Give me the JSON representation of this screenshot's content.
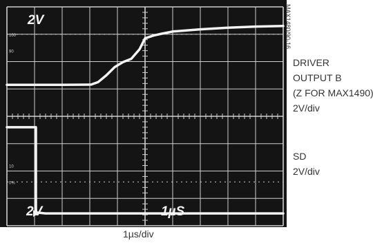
{
  "figure_id": "MAX1480/90-16",
  "scope": {
    "screen_color": "#141414",
    "grid_color": "#d0d0d0",
    "trace_color": "#f4f4f4",
    "ch1_scale_text": "2V",
    "ch2_scale_text": "2V",
    "timebase_text": "1µS",
    "ref_markers": [
      "100",
      "90",
      "10",
      "0%"
    ]
  },
  "channel_labels": {
    "ch1": [
      "DRIVER",
      "OUTPUT B",
      "(Z FOR MAX1490)",
      "2V/div"
    ],
    "ch2": [
      "SD",
      "2V/div"
    ]
  },
  "timebase_label": "1µs/div",
  "chart_data": {
    "type": "line",
    "xlabel": "1µs/div",
    "ylabel": "",
    "xlim": [
      0,
      10
    ],
    "ylim": [
      0,
      8
    ],
    "grid": true,
    "series": [
      {
        "name": "DRIVER OUTPUT B (Z FOR MAX1490)",
        "x": [
          0,
          1.0,
          2.0,
          3.05,
          3.3,
          3.6,
          3.9,
          4.2,
          4.5,
          4.8,
          5.0,
          5.3,
          5.6,
          6.0,
          7.0,
          8.0,
          9.0,
          10
        ],
        "y": [
          5.15,
          5.15,
          5.15,
          5.16,
          5.25,
          5.5,
          5.8,
          5.98,
          6.1,
          6.45,
          6.85,
          6.95,
          7.02,
          7.1,
          7.18,
          7.24,
          7.28,
          7.3
        ]
      },
      {
        "name": "SD",
        "x": [
          0,
          1.05,
          1.05,
          1.1,
          1.4,
          2.0,
          4.0,
          6.0,
          8.0,
          10
        ],
        "y": [
          3.6,
          3.6,
          0.45,
          0.48,
          0.45,
          0.45,
          0.45,
          0.45,
          0.45,
          0.45
        ]
      }
    ]
  }
}
